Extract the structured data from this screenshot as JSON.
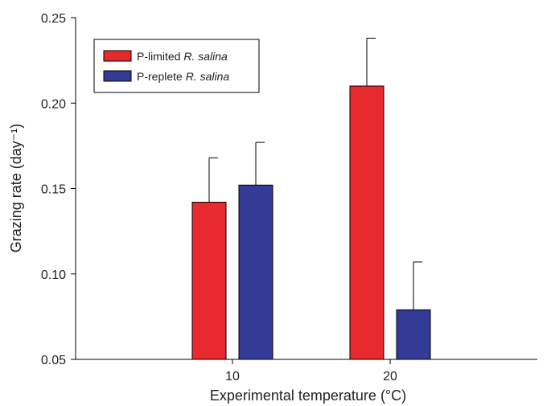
{
  "chart_data": {
    "type": "bar",
    "categories": [
      "10",
      "20"
    ],
    "xlabel": "Experimental temperature (°C)",
    "ylabel": "Grazing rate (day⁻¹)",
    "ylim": [
      0.05,
      0.25
    ],
    "yticks": [
      "0.05",
      "0.10",
      "0.15",
      "0.20",
      "0.25"
    ],
    "grid": false,
    "legend_placement": "top-left",
    "series": [
      {
        "name_prefix": "P-limited",
        "name_species": "R. salina",
        "color": "#e8292e",
        "values": [
          0.142,
          0.21
        ],
        "errors": [
          0.026,
          0.028
        ]
      },
      {
        "name_prefix": "P-replete",
        "name_species": "R. salina",
        "color": "#343b96",
        "values": [
          0.152,
          0.079
        ],
        "errors": [
          0.025,
          0.028
        ]
      }
    ]
  }
}
